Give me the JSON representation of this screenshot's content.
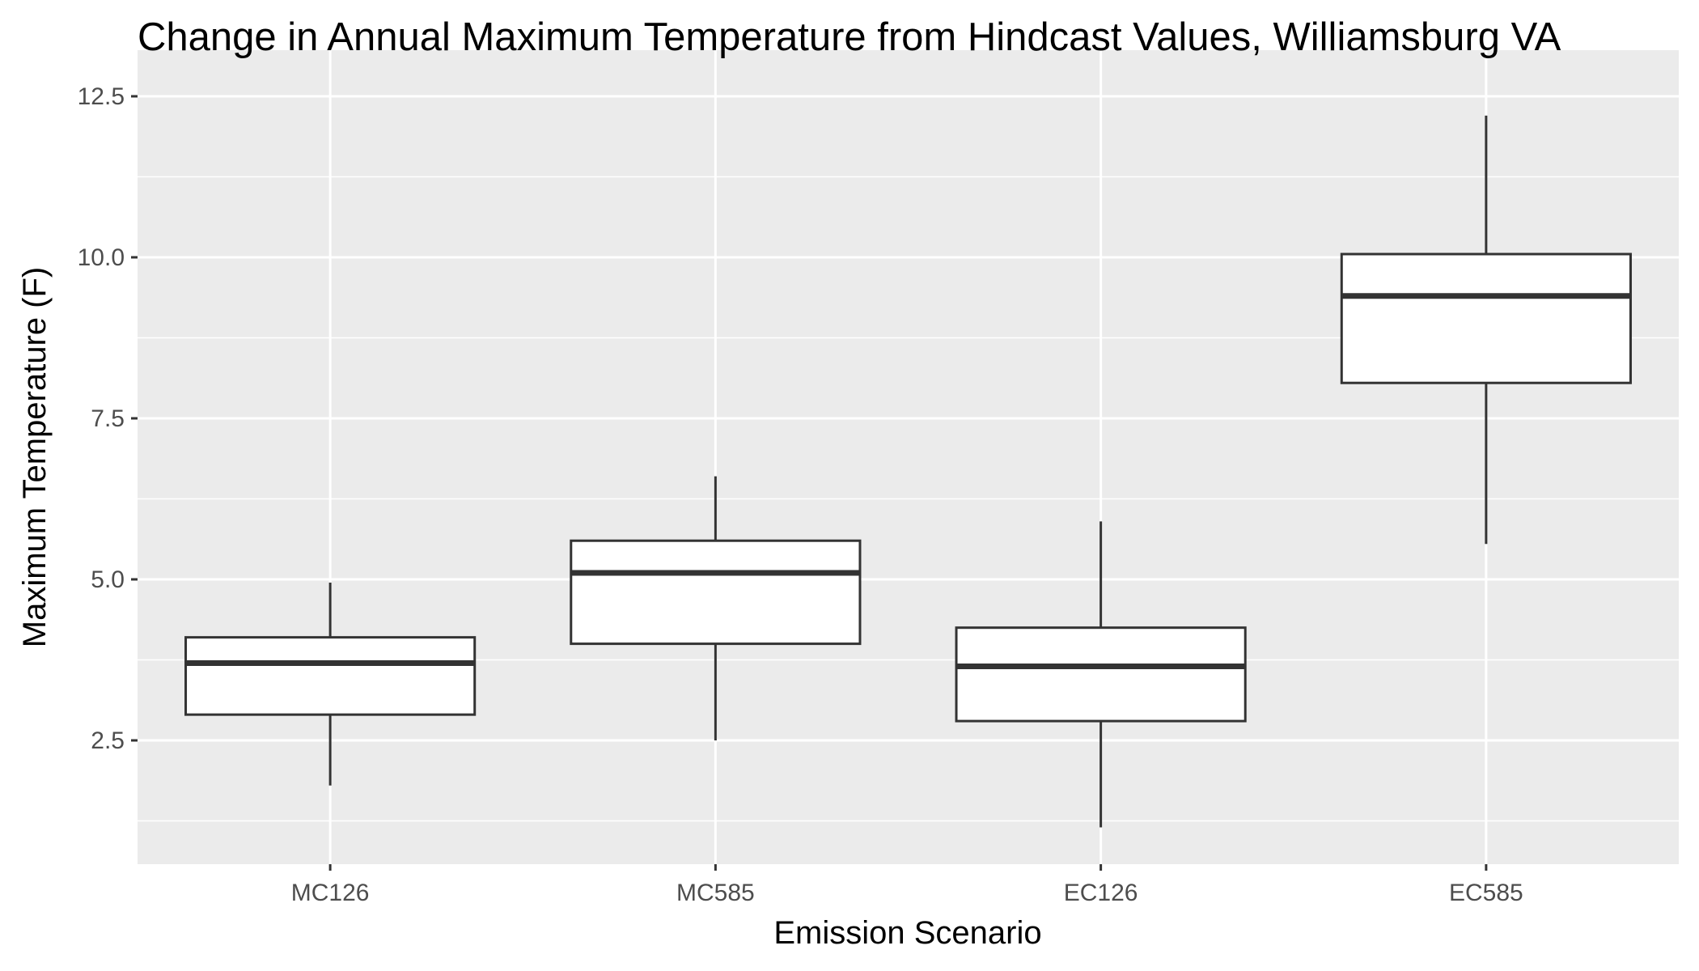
{
  "chart_data": {
    "type": "box",
    "title": "Change in Annual Maximum Temperature from Hindcast Values, Williamsburg VA",
    "xlabel": "Emission Scenario",
    "ylabel": "Maximum Temperature (F)",
    "categories": [
      "MC126",
      "MC585",
      "EC126",
      "EC585"
    ],
    "boxes": [
      {
        "category": "MC126",
        "whisker_low": 1.8,
        "q1": 2.9,
        "median": 3.7,
        "q3": 4.1,
        "whisker_high": 4.95
      },
      {
        "category": "MC585",
        "whisker_low": 2.5,
        "q1": 4.0,
        "median": 5.1,
        "q3": 5.6,
        "whisker_high": 6.6
      },
      {
        "category": "EC126",
        "whisker_low": 1.15,
        "q1": 2.8,
        "median": 3.65,
        "q3": 4.25,
        "whisker_high": 5.9
      },
      {
        "category": "EC585",
        "whisker_low": 5.55,
        "q1": 8.05,
        "median": 9.4,
        "q3": 10.05,
        "whisker_high": 12.2
      }
    ],
    "yticks": [
      "2.5",
      "5.0",
      "7.5",
      "10.0",
      "12.5"
    ],
    "ylim": [
      0.55,
      13.0
    ],
    "grid": true,
    "colors": {
      "panel_background": "#ebebeb",
      "grid_line": "#ffffff",
      "box_fill": "#ffffff",
      "box_stroke": "#333333",
      "tick_mark": "#333333",
      "tick_label": "#4d4d4d",
      "title": "#000000"
    }
  }
}
